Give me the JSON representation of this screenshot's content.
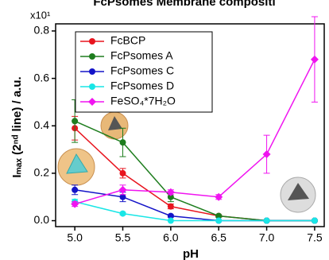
{
  "chart_data": {
    "type": "line",
    "title": "FcPsomes Membrane compositi",
    "x_label": "pH",
    "y_label": "Iₘₐₓ (2ⁿᵈ line) / a.u.",
    "y_multiplier": "x10¹",
    "x": [
      5.0,
      5.5,
      6.0,
      6.5,
      7.0,
      7.5
    ],
    "xlim": [
      4.8,
      7.6
    ],
    "xticks": [
      {
        "value": 5.0,
        "label": "5.0"
      },
      {
        "value": 5.5,
        "label": "5.5"
      },
      {
        "value": 6.0,
        "label": "6.0"
      },
      {
        "value": 6.5,
        "label": "6.5"
      },
      {
        "value": 7.0,
        "label": "7.0"
      },
      {
        "value": 7.5,
        "label": "7.5"
      }
    ],
    "ylim": [
      -0.025,
      0.83
    ],
    "yticks": [
      {
        "value": 0.0,
        "label": "0.0"
      },
      0.2,
      0.4,
      0.6,
      0.8
    ],
    "series": [
      {
        "name": "FcBCP",
        "color": "#e8141e",
        "marker": "circle",
        "values": [
          0.39,
          0.2,
          0.06,
          0.02,
          0.0,
          0.0
        ],
        "errors": [
          0.05,
          0.02,
          0.01,
          0.005,
          0.0,
          0.0
        ]
      },
      {
        "name": "FcPsomes A",
        "color": "#1e7d1e",
        "marker": "circle",
        "values": [
          0.42,
          0.33,
          0.1,
          0.02,
          0.0,
          0.0
        ],
        "errors": [
          0.09,
          0.06,
          0.02,
          0.005,
          0.0,
          0.0
        ]
      },
      {
        "name": "FcPsomes C",
        "color": "#1414c8",
        "marker": "circle",
        "values": [
          0.13,
          0.1,
          0.02,
          0.0,
          0.0,
          0.0
        ],
        "errors": [
          0.02,
          0.02,
          0.005,
          0.0,
          0.0,
          0.0
        ]
      },
      {
        "name": "FcPsomes D",
        "color": "#18e6e6",
        "marker": "circle",
        "values": [
          0.08,
          0.03,
          0.0,
          0.0,
          0.0,
          0.0
        ],
        "errors": [
          0.01,
          0.005,
          0.0,
          0.0,
          0.0,
          0.0
        ]
      },
      {
        "name": "FeSO₄*7H₂O",
        "color": "#f014f0",
        "marker": "diamond",
        "values": [
          0.07,
          0.13,
          0.12,
          0.1,
          0.28,
          0.68
        ],
        "errors": [
          0.01,
          0.02,
          0.01,
          0.01,
          0.08,
          0.18
        ]
      }
    ],
    "legend": "upper-left"
  }
}
